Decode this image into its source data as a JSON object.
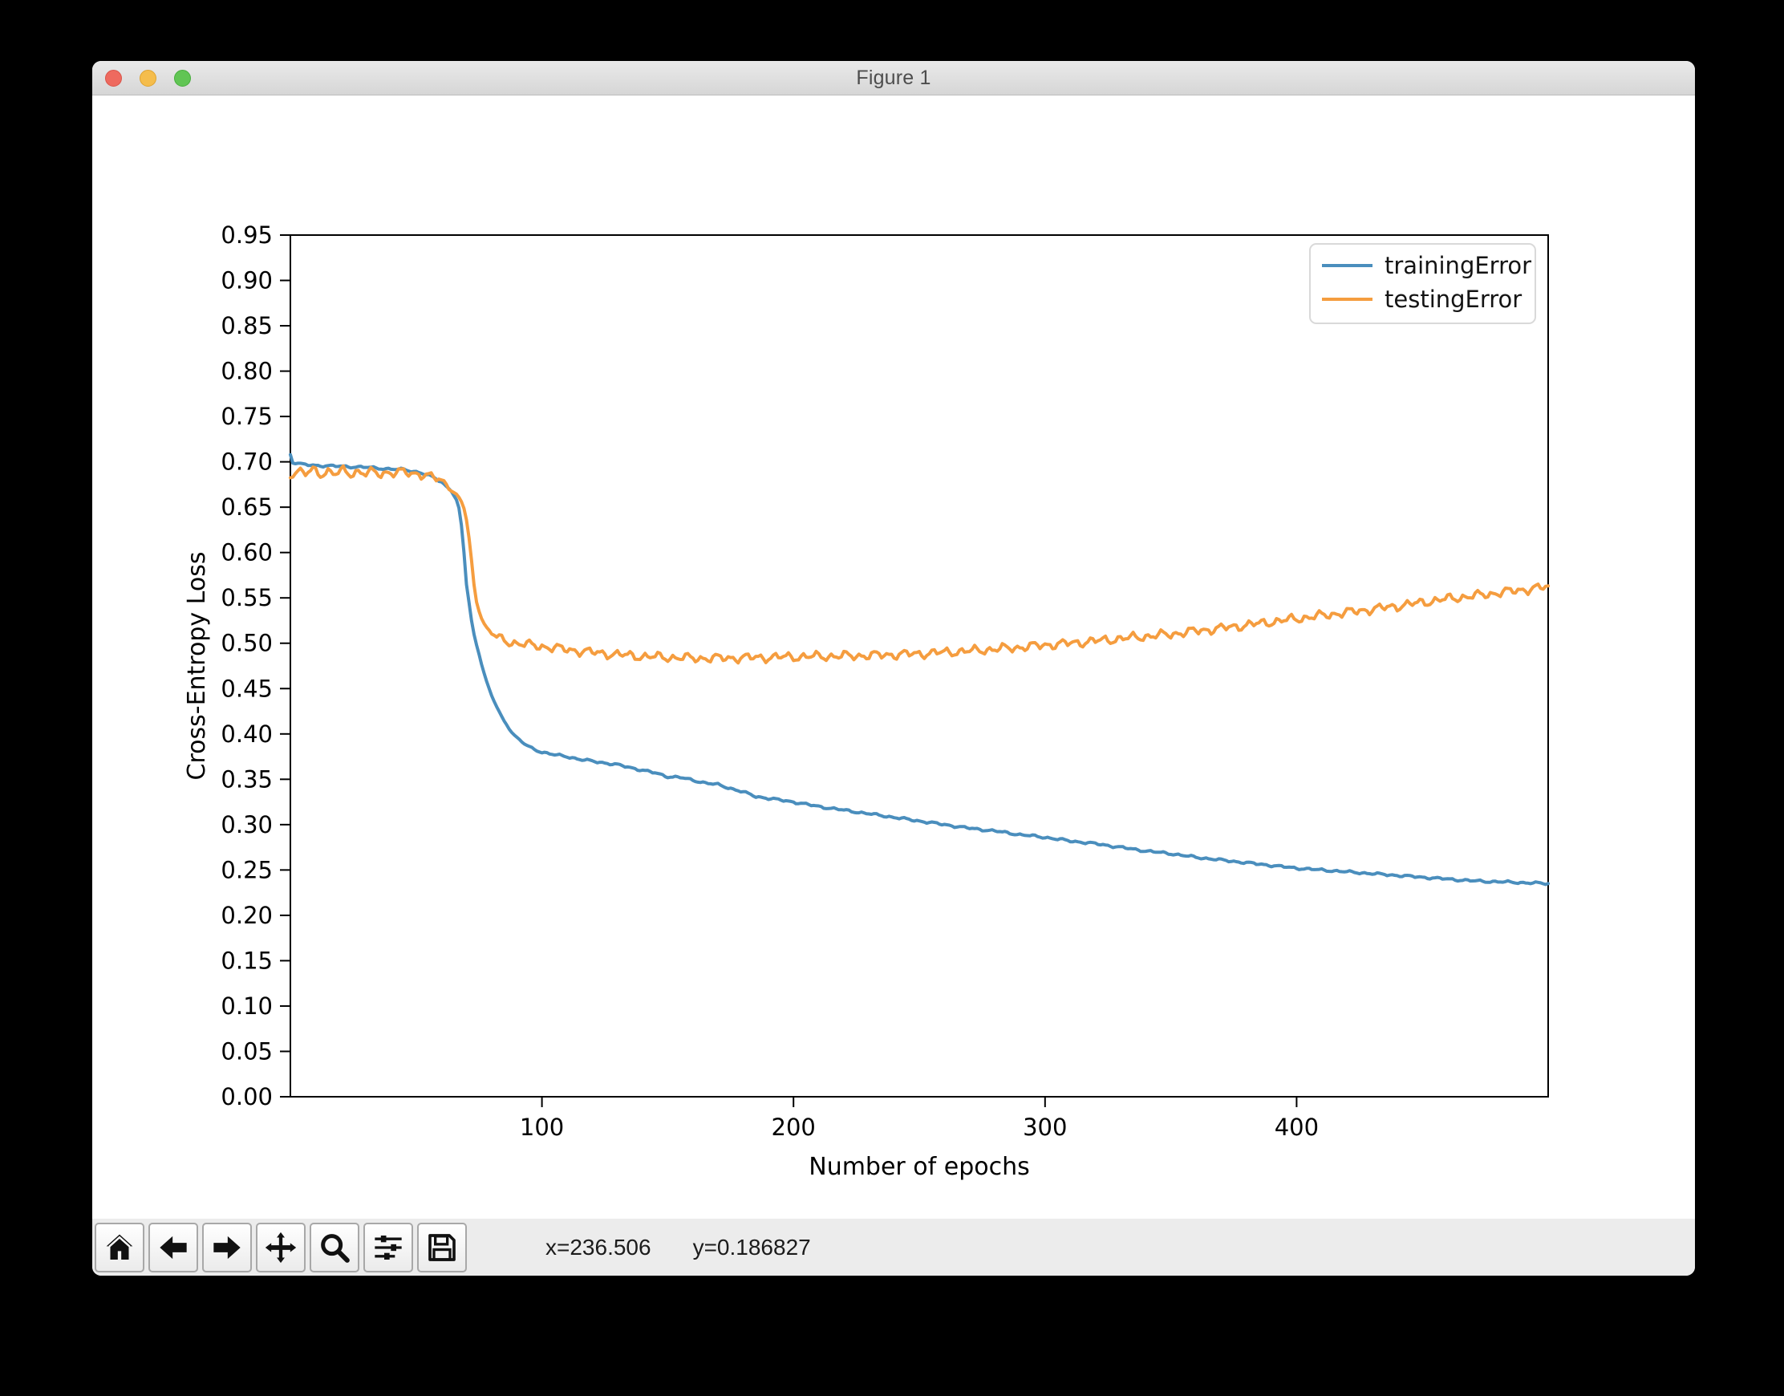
{
  "window": {
    "title": "Figure 1"
  },
  "chart_data": {
    "type": "line",
    "title": "",
    "xlabel": "Number of epochs",
    "ylabel": "Cross-Entropy Loss",
    "xlim": [
      0,
      500
    ],
    "ylim": [
      0,
      0.95
    ],
    "x_ticks": [
      100,
      200,
      300,
      400
    ],
    "y_ticks": [
      "0.00",
      "0.05",
      "0.10",
      "0.15",
      "0.20",
      "0.25",
      "0.30",
      "0.35",
      "0.40",
      "0.45",
      "0.50",
      "0.55",
      "0.60",
      "0.65",
      "0.70",
      "0.75",
      "0.80",
      "0.85",
      "0.90",
      "0.95"
    ],
    "grid": false,
    "legend_position": "upper right",
    "series": [
      {
        "name": "trainingError",
        "color": "#4a8ebd",
        "noise_amp": 0.0016,
        "points": [
          [
            0,
            0.708
          ],
          [
            1,
            0.699
          ],
          [
            5,
            0.697
          ],
          [
            10,
            0.696
          ],
          [
            15,
            0.6955
          ],
          [
            20,
            0.695
          ],
          [
            25,
            0.6945
          ],
          [
            30,
            0.694
          ],
          [
            35,
            0.693
          ],
          [
            40,
            0.692
          ],
          [
            45,
            0.6915
          ],
          [
            48,
            0.69
          ],
          [
            51,
            0.6885
          ],
          [
            54,
            0.686
          ],
          [
            57,
            0.6825
          ],
          [
            60,
            0.678
          ],
          [
            62,
            0.673
          ],
          [
            64,
            0.668
          ],
          [
            66,
            0.658
          ],
          [
            67,
            0.649
          ],
          [
            68,
            0.63
          ],
          [
            69,
            0.6
          ],
          [
            70,
            0.565
          ],
          [
            71,
            0.545
          ],
          [
            72,
            0.525
          ],
          [
            73,
            0.51
          ],
          [
            74,
            0.498
          ],
          [
            75,
            0.488
          ],
          [
            76,
            0.477
          ],
          [
            77,
            0.467
          ],
          [
            78,
            0.458
          ],
          [
            80,
            0.442
          ],
          [
            82,
            0.43
          ],
          [
            85,
            0.414
          ],
          [
            88,
            0.402
          ],
          [
            90,
            0.396
          ],
          [
            93,
            0.389
          ],
          [
            96,
            0.384
          ],
          [
            100,
            0.38
          ],
          [
            105,
            0.377
          ],
          [
            110,
            0.375
          ],
          [
            115,
            0.372
          ],
          [
            120,
            0.37
          ],
          [
            125,
            0.368
          ],
          [
            130,
            0.366
          ],
          [
            135,
            0.363
          ],
          [
            140,
            0.36
          ],
          [
            145,
            0.357
          ],
          [
            150,
            0.353
          ],
          [
            155,
            0.352
          ],
          [
            160,
            0.349
          ],
          [
            165,
            0.346
          ],
          [
            170,
            0.344
          ],
          [
            175,
            0.34
          ],
          [
            180,
            0.336
          ],
          [
            185,
            0.331
          ],
          [
            190,
            0.329
          ],
          [
            195,
            0.327
          ],
          [
            200,
            0.325
          ],
          [
            210,
            0.32
          ],
          [
            220,
            0.316
          ],
          [
            230,
            0.312
          ],
          [
            240,
            0.308
          ],
          [
            250,
            0.304
          ],
          [
            260,
            0.3
          ],
          [
            270,
            0.296
          ],
          [
            280,
            0.293
          ],
          [
            290,
            0.289
          ],
          [
            300,
            0.286
          ],
          [
            310,
            0.282
          ],
          [
            320,
            0.279
          ],
          [
            330,
            0.275
          ],
          [
            340,
            0.271
          ],
          [
            350,
            0.268
          ],
          [
            360,
            0.264
          ],
          [
            370,
            0.261
          ],
          [
            380,
            0.258
          ],
          [
            390,
            0.255
          ],
          [
            400,
            0.252
          ],
          [
            410,
            0.25
          ],
          [
            420,
            0.248
          ],
          [
            430,
            0.246
          ],
          [
            440,
            0.244
          ],
          [
            450,
            0.242
          ],
          [
            460,
            0.24
          ],
          [
            470,
            0.238
          ],
          [
            480,
            0.237
          ],
          [
            490,
            0.236
          ],
          [
            500,
            0.235
          ]
        ]
      },
      {
        "name": "testingError",
        "color": "#f59d3f",
        "noise_amp": 0.0063,
        "points": [
          [
            0,
            0.687
          ],
          [
            3,
            0.69
          ],
          [
            6,
            0.6865
          ],
          [
            9,
            0.691
          ],
          [
            12,
            0.687
          ],
          [
            15,
            0.6895
          ],
          [
            18,
            0.6865
          ],
          [
            21,
            0.69
          ],
          [
            24,
            0.687
          ],
          [
            27,
            0.6895
          ],
          [
            30,
            0.687
          ],
          [
            33,
            0.6885
          ],
          [
            36,
            0.6865
          ],
          [
            39,
            0.689
          ],
          [
            42,
            0.6875
          ],
          [
            45,
            0.689
          ],
          [
            48,
            0.6865
          ],
          [
            51,
            0.6875
          ],
          [
            54,
            0.685
          ],
          [
            57,
            0.6825
          ],
          [
            60,
            0.679
          ],
          [
            62,
            0.675
          ],
          [
            64,
            0.67
          ],
          [
            66,
            0.664
          ],
          [
            68,
            0.656
          ],
          [
            69,
            0.649
          ],
          [
            70,
            0.636
          ],
          [
            71,
            0.616
          ],
          [
            72,
            0.591
          ],
          [
            73,
            0.564
          ],
          [
            74,
            0.546
          ],
          [
            75,
            0.536
          ],
          [
            76,
            0.528
          ],
          [
            77,
            0.522
          ],
          [
            78,
            0.517
          ],
          [
            80,
            0.511
          ],
          [
            83,
            0.505
          ],
          [
            86,
            0.502
          ],
          [
            90,
            0.5
          ],
          [
            95,
            0.498
          ],
          [
            100,
            0.4965
          ],
          [
            110,
            0.493
          ],
          [
            120,
            0.49
          ],
          [
            130,
            0.4875
          ],
          [
            140,
            0.4855
          ],
          [
            150,
            0.4845
          ],
          [
            160,
            0.4835
          ],
          [
            170,
            0.4835
          ],
          [
            180,
            0.484
          ],
          [
            190,
            0.4845
          ],
          [
            200,
            0.485
          ],
          [
            210,
            0.4855
          ],
          [
            220,
            0.486
          ],
          [
            230,
            0.4865
          ],
          [
            240,
            0.4875
          ],
          [
            250,
            0.4885
          ],
          [
            260,
            0.49
          ],
          [
            270,
            0.4915
          ],
          [
            280,
            0.4935
          ],
          [
            290,
            0.4955
          ],
          [
            300,
            0.498
          ],
          [
            310,
            0.5
          ],
          [
            320,
            0.5025
          ],
          [
            330,
            0.505
          ],
          [
            340,
            0.5075
          ],
          [
            350,
            0.51
          ],
          [
            360,
            0.5135
          ],
          [
            370,
            0.5165
          ],
          [
            380,
            0.52
          ],
          [
            390,
            0.5235
          ],
          [
            400,
            0.527
          ],
          [
            410,
            0.5305
          ],
          [
            420,
            0.534
          ],
          [
            430,
            0.5375
          ],
          [
            440,
            0.541
          ],
          [
            450,
            0.545
          ],
          [
            460,
            0.549
          ],
          [
            470,
            0.552
          ],
          [
            480,
            0.5555
          ],
          [
            490,
            0.559
          ],
          [
            500,
            0.562
          ]
        ]
      }
    ]
  },
  "toolbar": {
    "buttons": [
      {
        "name": "home"
      },
      {
        "name": "back"
      },
      {
        "name": "forward"
      },
      {
        "name": "pan"
      },
      {
        "name": "zoom"
      },
      {
        "name": "configure-subplots"
      },
      {
        "name": "save"
      }
    ],
    "status_x": "x=236.506",
    "status_y": "y=0.186827"
  },
  "traffic_lights": {
    "close": "#ee6a5f",
    "minimize": "#f5bd4c",
    "maximize": "#61c554"
  }
}
